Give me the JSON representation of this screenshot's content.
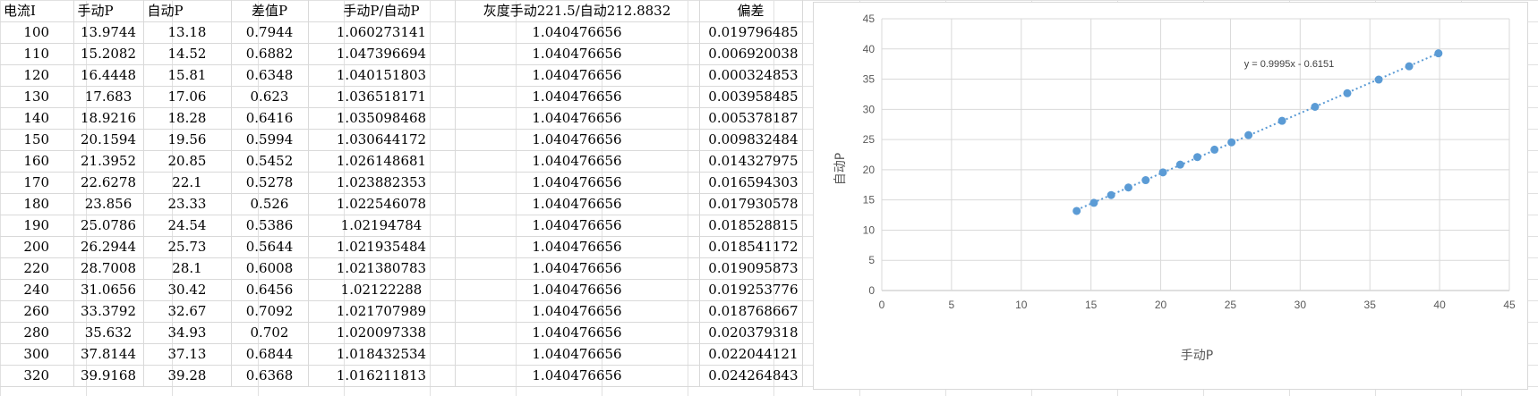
{
  "table": {
    "headers": [
      "电流I",
      "手动P",
      "自动P",
      "差值P",
      "手动P/自动P",
      "灰度手动221.5/自动212.8832",
      "偏差"
    ],
    "rows": [
      [
        "100",
        "13.9744",
        "13.18",
        "0.7944",
        "1.060273141",
        "1.040476656",
        "0.019796485"
      ],
      [
        "110",
        "15.2082",
        "14.52",
        "0.6882",
        "1.047396694",
        "1.040476656",
        "0.006920038"
      ],
      [
        "120",
        "16.4448",
        "15.81",
        "0.6348",
        "1.040151803",
        "1.040476656",
        "0.000324853"
      ],
      [
        "130",
        "17.683",
        "17.06",
        "0.623",
        "1.036518171",
        "1.040476656",
        "0.003958485"
      ],
      [
        "140",
        "18.9216",
        "18.28",
        "0.6416",
        "1.035098468",
        "1.040476656",
        "0.005378187"
      ],
      [
        "150",
        "20.1594",
        "19.56",
        "0.5994",
        "1.030644172",
        "1.040476656",
        "0.009832484"
      ],
      [
        "160",
        "21.3952",
        "20.85",
        "0.5452",
        "1.026148681",
        "1.040476656",
        "0.014327975"
      ],
      [
        "170",
        "22.6278",
        "22.1",
        "0.5278",
        "1.023882353",
        "1.040476656",
        "0.016594303"
      ],
      [
        "180",
        "23.856",
        "23.33",
        "0.526",
        "1.022546078",
        "1.040476656",
        "0.017930578"
      ],
      [
        "190",
        "25.0786",
        "24.54",
        "0.5386",
        "1.02194784",
        "1.040476656",
        "0.018528815"
      ],
      [
        "200",
        "26.2944",
        "25.73",
        "0.5644",
        "1.021935484",
        "1.040476656",
        "0.018541172"
      ],
      [
        "220",
        "28.7008",
        "28.1",
        "0.6008",
        "1.021380783",
        "1.040476656",
        "0.019095873"
      ],
      [
        "240",
        "31.0656",
        "30.42",
        "0.6456",
        "1.02122288",
        "1.040476656",
        "0.019253776"
      ],
      [
        "260",
        "33.3792",
        "32.67",
        "0.7092",
        "1.021707989",
        "1.040476656",
        "0.018768667"
      ],
      [
        "280",
        "35.632",
        "34.93",
        "0.702",
        "1.020097338",
        "1.040476656",
        "0.020379318"
      ],
      [
        "300",
        "37.8144",
        "37.13",
        "0.6844",
        "1.018432534",
        "1.040476656",
        "0.022044121"
      ],
      [
        "320",
        "39.9168",
        "39.28",
        "0.6368",
        "1.016211813",
        "1.040476656",
        "0.024264843"
      ]
    ]
  },
  "chart_data": {
    "type": "scatter",
    "title": "",
    "xlabel": "手动P",
    "ylabel": "自动P",
    "xlim": [
      0,
      45
    ],
    "ylim": [
      0,
      45
    ],
    "xticks": [
      0,
      5,
      10,
      15,
      20,
      25,
      30,
      35,
      40,
      45
    ],
    "yticks": [
      0,
      5,
      10,
      15,
      20,
      25,
      30,
      35,
      40,
      45
    ],
    "grid": true,
    "legend": "none",
    "marker_color": "#5b9bd5",
    "points": [
      [
        13.9744,
        13.18
      ],
      [
        15.2082,
        14.52
      ],
      [
        16.4448,
        15.81
      ],
      [
        17.683,
        17.06
      ],
      [
        18.9216,
        18.28
      ],
      [
        20.1594,
        19.56
      ],
      [
        21.3952,
        20.85
      ],
      [
        22.6278,
        22.1
      ],
      [
        23.856,
        23.33
      ],
      [
        25.0786,
        24.54
      ],
      [
        26.2944,
        25.73
      ],
      [
        28.7008,
        28.1
      ],
      [
        31.0656,
        30.42
      ],
      [
        33.3792,
        32.67
      ],
      [
        35.632,
        34.93
      ],
      [
        37.8144,
        37.13
      ],
      [
        39.9168,
        39.28
      ]
    ],
    "trendline": {
      "type": "linear",
      "slope": 0.9995,
      "intercept": -0.6151,
      "equation": "y = 0.9995x - 0.6151",
      "style": "dotted"
    }
  }
}
